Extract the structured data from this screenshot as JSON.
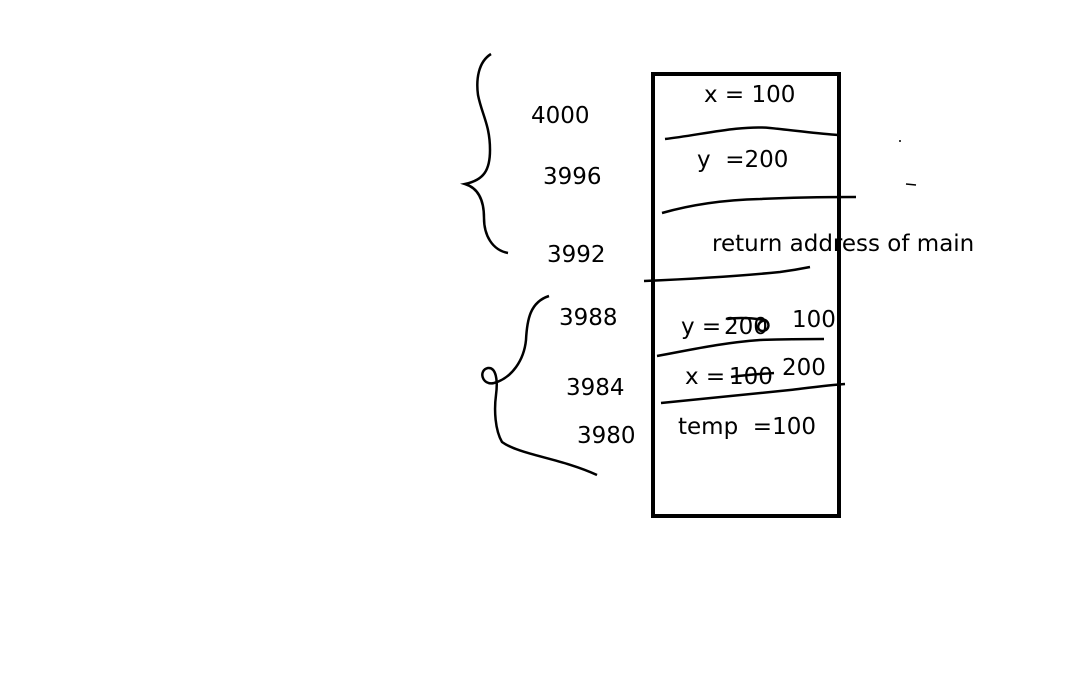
{
  "stack_cells": {
    "x_main": "x = 100",
    "y_main": "y  =200",
    "return_address": "return address of main",
    "y_swap_prefix": "y = ",
    "y_swap_old": "200",
    "y_swap_new": "100",
    "x_swap_prefix": "x = ",
    "x_swap_old": "100",
    "x_swap_new": "200",
    "temp": "temp  =100"
  },
  "addresses": {
    "a4000": "4000",
    "a3996": "3996",
    "a3992": "3992",
    "a3988": "3988",
    "a3984": "3984",
    "a3980": "3980"
  },
  "colors": {
    "ink": "#000000",
    "background": "#ffffff"
  }
}
